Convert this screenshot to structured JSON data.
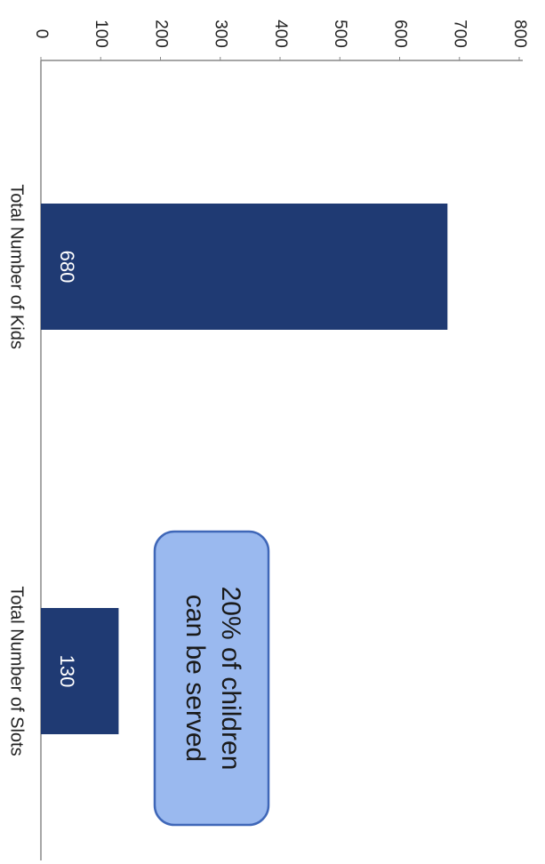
{
  "chart_data": {
    "type": "bar",
    "orientation": "rotated",
    "categories": [
      "Total Number of Kids",
      "Total Number of Slots"
    ],
    "values": [
      680,
      130
    ],
    "data_labels": [
      "680",
      "130"
    ],
    "ylim": [
      0,
      800
    ],
    "yticks": [
      0,
      100,
      200,
      300,
      400,
      500,
      600,
      700,
      800
    ],
    "grid": false,
    "colors": {
      "bar": "#1f3a73",
      "callout_fill": "#9ab9ef",
      "callout_border": "#3f67b8",
      "axis": "#888888"
    },
    "annotation": {
      "lines": [
        "20% of children",
        "can be served"
      ]
    }
  }
}
